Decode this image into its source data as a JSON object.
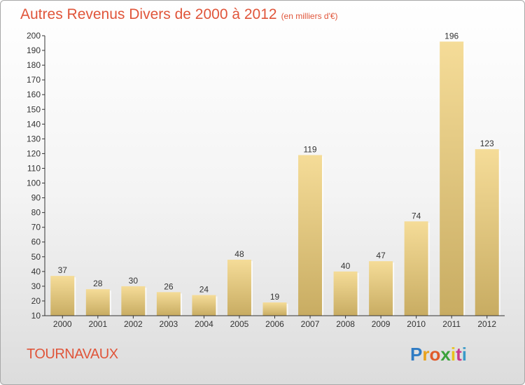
{
  "header": {
    "title": "Autres Revenus Divers de 2000 à 2012",
    "subtitle": "(en milliers d'€)"
  },
  "footer": {
    "city": "TOURNAVAUX",
    "logo_letters": [
      "P",
      "r",
      "o",
      "x",
      "i",
      "t",
      "i"
    ],
    "logo_colors": [
      "#2e7bc4",
      "#e8a21c",
      "#e05a2a",
      "#3aa23a",
      "#e8c21c",
      "#c83a8a",
      "#3a9ac8"
    ]
  },
  "colors": {
    "bar_top": "#f5dc98",
    "bar_bottom": "#c8ac62",
    "axis": "#333333",
    "title": "#e0553a"
  },
  "chart_data": {
    "type": "bar",
    "categories": [
      "2000",
      "2001",
      "2002",
      "2003",
      "2004",
      "2005",
      "2006",
      "2007",
      "2008",
      "2009",
      "2010",
      "2011",
      "2012"
    ],
    "values": [
      37,
      28,
      30,
      26,
      24,
      48,
      19,
      119,
      40,
      47,
      74,
      196,
      123
    ],
    "data_labels": [
      "37",
      "28",
      "30",
      "26",
      "24",
      "48",
      "19",
      "119",
      "40",
      "47",
      "74",
      "196",
      "123"
    ],
    "ylim": [
      10,
      200
    ],
    "yticks": [
      10,
      20,
      30,
      40,
      50,
      60,
      70,
      80,
      90,
      100,
      110,
      120,
      130,
      140,
      150,
      160,
      170,
      180,
      190,
      200
    ],
    "grid": false,
    "legend": "none"
  }
}
